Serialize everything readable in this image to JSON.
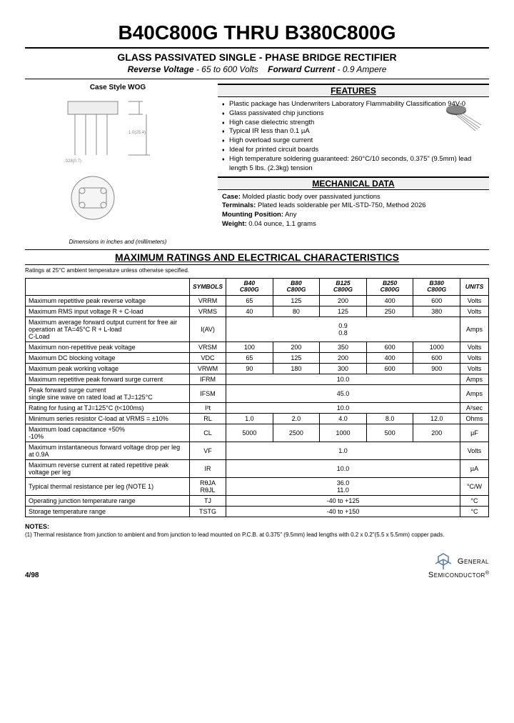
{
  "title": "B40C800G THRU B380C800G",
  "subtitle": "GLASS PASSIVATED SINGLE - PHASE BRIDGE RECTIFIER",
  "specs_line": {
    "rv_label": "Reverse Voltage",
    "rv_val": "- 65 to 600 Volts",
    "fc_label": "Forward Current",
    "fc_val": "- 0.9 Ampere"
  },
  "case_label": "Case Style WOG",
  "dim_note": "Dimensions in inches and (millimeters)",
  "features_header": "FEATURES",
  "features": [
    "Plastic package has Underwriters Laboratory Flammability Classification 94V-0",
    "Glass passivated chip junctions",
    "High case dielectric strength",
    "Typical IR less than 0.1 µA",
    "High overload surge current",
    "Ideal for printed circuit boards",
    "High temperature soldering guaranteed: 260°C/10 seconds, 0.375\" (9.5mm) lead length 5 lbs. (2.3kg) tension"
  ],
  "mech_header": "MECHANICAL DATA",
  "mech": {
    "case": "Molded plastic body over passivated junctions",
    "terminals": "Plated leads solderable per MIL-STD-750, Method 2026",
    "mounting": "Any",
    "weight": "0.04 ounce, 1.1 grams"
  },
  "ratings_header": "MAXIMUM RATINGS AND ELECTRICAL CHARACTERISTICS",
  "ratings_note": "Ratings at 25°C ambient temperature unless otherwise specified.",
  "table": {
    "col_symbols": "SYMBOLS",
    "col_units": "UNITS",
    "parts": [
      "B40\nC800G",
      "B80\nC800G",
      "B125\nC800G",
      "B250\nC800G",
      "B380\nC800G"
    ],
    "rows": [
      {
        "param": "Maximum repetitive peak reverse voltage",
        "sym": "VRRM",
        "vals": [
          "65",
          "125",
          "200",
          "400",
          "600"
        ],
        "unit": "Volts"
      },
      {
        "param": "Maximum RMS input voltage R + C-load",
        "sym": "VRMS",
        "vals": [
          "40",
          "80",
          "125",
          "250",
          "380"
        ],
        "unit": "Volts"
      },
      {
        "param": "Maximum average forward output current for free air operation at TA=45°C R + L-load\n                                      C-Load",
        "sym": "I(AV)",
        "span": "0.9\n0.8",
        "unit": "Amps"
      },
      {
        "param": "Maximum non-repetitive peak voltage",
        "sym": "VRSM",
        "vals": [
          "100",
          "200",
          "350",
          "600",
          "1000"
        ],
        "unit": "Volts"
      },
      {
        "param": "Maximum DC blocking voltage",
        "sym": "VDC",
        "vals": [
          "65",
          "125",
          "200",
          "400",
          "600"
        ],
        "unit": "Volts"
      },
      {
        "param": "Maximum peak working voltage",
        "sym": "VRWM",
        "vals": [
          "90",
          "180",
          "300",
          "600",
          "900"
        ],
        "unit": "Volts"
      },
      {
        "param": "Maximum repetitive peak forward surge current",
        "sym": "IFRM",
        "span": "10.0",
        "unit": "Amps"
      },
      {
        "param": "Peak forward surge current\nsingle sine wave on rated load at TJ=125°C",
        "sym": "IFSM",
        "span": "45.0",
        "unit": "Amps"
      },
      {
        "param": "Rating for fusing at TJ=125°C (t<100ms)",
        "sym": "I²t",
        "span": "10.0",
        "unit": "A²sec"
      },
      {
        "param": "Minimum series resistor C-load at VRMS = ±10%",
        "sym": "RL",
        "vals": [
          "1.0",
          "2.0",
          "4.0",
          "8.0",
          "12.0"
        ],
        "unit": "Ohms"
      },
      {
        "param": "Maximum load capacitance +50%\n                                           -10%",
        "sym": "CL",
        "vals": [
          "5000",
          "2500",
          "1000",
          "500",
          "200"
        ],
        "unit": "µF"
      },
      {
        "param": "Maximum instantaneous forward voltage drop per leg at 0.9A",
        "sym": "VF",
        "span": "1.0",
        "unit": "Volts"
      },
      {
        "param": "Maximum reverse current at rated repetitive peak voltage per leg",
        "sym": "IR",
        "span": "10.0",
        "unit": "µA"
      },
      {
        "param": "Typical thermal resistance per leg (NOTE 1)",
        "sym": "RθJA\nRθJL",
        "span": "36.0\n11.0",
        "unit": "°C/W"
      },
      {
        "param": "Operating junction temperature range",
        "sym": "TJ",
        "span": "-40 to +125",
        "unit": "°C"
      },
      {
        "param": "Storage temperature range",
        "sym": "TSTG",
        "span": "-40 to +150",
        "unit": "°C"
      }
    ]
  },
  "notes_head": "NOTES:",
  "notes_body": "(1) Thermal resistance from junction to ambient and from junction to lead mounted on P.C.B. at 0.375\" (9.5mm) lead lengths with 0.2 x 0.2\"(5.5 x 5.5mm) copper pads.",
  "footer_date": "4/98",
  "footer_brand1": "General",
  "footer_brand2": "Semiconductor",
  "colors": {
    "rule": "#000000",
    "bg": "#ffffff",
    "section_bg": "#f0f0f0"
  }
}
